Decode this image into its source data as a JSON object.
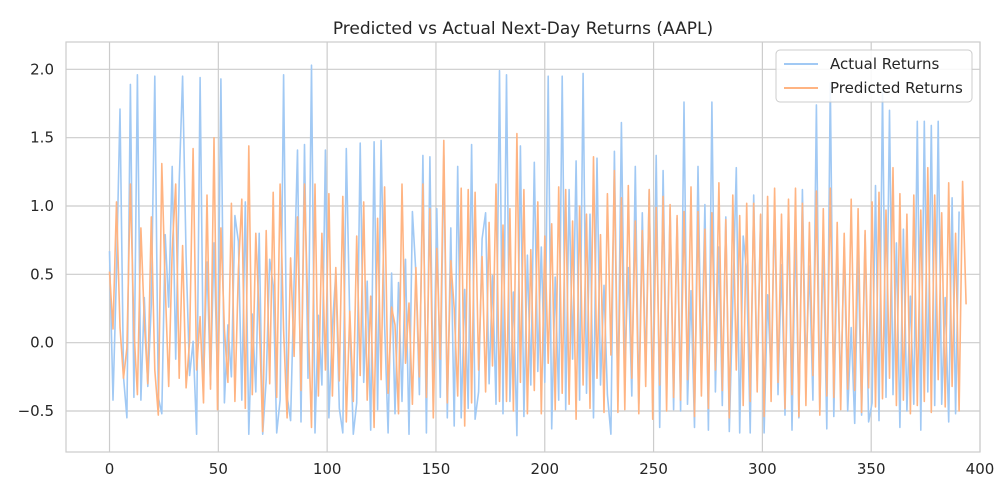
{
  "chart_data": {
    "type": "line",
    "title": "Predicted vs Actual Next-Day Returns (AAPL)",
    "xlabel": "",
    "ylabel": "",
    "xlim": [
      -20,
      400
    ],
    "ylim": [
      -0.8,
      2.2
    ],
    "x_ticks": [
      0,
      50,
      100,
      150,
      200,
      250,
      300,
      350,
      400
    ],
    "y_ticks": [
      -0.5,
      0.0,
      0.5,
      1.0,
      1.5,
      2.0
    ],
    "x_tick_labels": [
      "0",
      "50",
      "100",
      "150",
      "200",
      "250",
      "300",
      "350",
      "400"
    ],
    "y_tick_labels": [
      "−0.5",
      "0.0",
      "0.5",
      "1.0",
      "1.5",
      "2.0"
    ],
    "grid": true,
    "legend_position": "upper right",
    "series": [
      {
        "name": "Actual Returns",
        "color": "#a1c9f4",
        "values": [
          0.67,
          -0.42,
          0.52,
          1.71,
          -0.25,
          -0.55,
          1.89,
          -0.4,
          1.96,
          -0.42,
          0.33,
          -0.32,
          0.28,
          1.95,
          -0.4,
          -0.52,
          0.79,
          0.26,
          1.29,
          -0.12,
          1.18,
          1.95,
          0.63,
          -0.24,
          0.01,
          -0.67,
          1.94,
          -0.29,
          0.59,
          -0.31,
          0.73,
          -0.27,
          1.93,
          -0.44,
          0.13,
          -0.25,
          0.93,
          0.74,
          -0.42,
          1.03,
          -0.67,
          0.21,
          -0.36,
          0.8,
          -0.67,
          -0.27,
          0.61,
          0.42,
          -0.66,
          -0.42,
          1.96,
          -0.39,
          -0.57,
          0.45,
          1.41,
          -0.58,
          1.45,
          -0.26,
          2.03,
          -0.66,
          0.2,
          -0.31,
          1.41,
          -0.55,
          0.12,
          0.51,
          -0.48,
          -0.66,
          1.42,
          0.15,
          -0.67,
          -0.44,
          1.46,
          -0.29,
          0.45,
          -0.64,
          1.47,
          -0.49,
          1.48,
          0.13,
          -0.66,
          0.51,
          -0.52,
          0.44,
          -0.43,
          0.61,
          -0.67,
          0.96,
          0.51,
          -0.38,
          1.37,
          -0.66,
          1.36,
          -0.45,
          0.98,
          -0.4,
          1.37,
          -0.55,
          0.84,
          -0.61,
          1.29,
          -0.55,
          0.39,
          -0.48,
          1.45,
          -0.56,
          -0.36,
          0.76,
          0.95,
          -0.3,
          0.49,
          -0.45,
          1.99,
          -0.52,
          1.96,
          -0.43,
          0.37,
          -0.68,
          1.44,
          -0.54,
          0.64,
          -0.31,
          1.32,
          -0.21,
          0.7,
          -0.29,
          1.95,
          -0.63,
          0.48,
          -0.42,
          1.95,
          -0.49,
          1.12,
          -0.12,
          1.33,
          -0.42,
          1.97,
          -0.37,
          0.94,
          -0.55,
          1.35,
          -0.31,
          0.42,
          -0.38,
          -0.67,
          1.4,
          -0.43,
          1.61,
          -0.17,
          0.55,
          -0.39,
          1.29,
          -0.45,
          0.95,
          -0.21,
          1.12,
          -0.44,
          1.37,
          -0.62,
          1.26,
          -0.3,
          0.98,
          -0.49,
          0.91,
          -0.5,
          1.76,
          -0.45,
          0.38,
          -0.62,
          1.29,
          -0.23,
          1.01,
          -0.64,
          1.76,
          -0.36,
          0.7,
          -0.46,
          0.92,
          -0.65,
          0.3,
          1.28,
          -0.66,
          0.78,
          0.52,
          -0.66,
          1.08,
          -0.28,
          0.93,
          -0.66,
          0.35,
          -0.25,
          1.02,
          -0.38,
          0.57,
          -0.53,
          0.99,
          -0.64,
          0.84,
          -0.55,
          1.12,
          -0.22,
          0.56,
          -0.42,
          1.74,
          -0.48,
          0.72,
          -0.63,
          1.9,
          -0.54,
          0.69,
          -0.35,
          0.7,
          -0.5,
          0.11,
          -0.59,
          0.66,
          -0.53,
          0.79,
          -0.58,
          -0.44,
          1.15,
          -0.57,
          1.84,
          -0.4,
          1.7,
          -0.38,
          0.73,
          -0.62,
          0.83,
          -0.5,
          0.34,
          -0.45,
          1.62,
          -0.64,
          1.62,
          -0.36,
          1.59,
          -0.46,
          1.62,
          -0.45,
          0.33,
          -0.58,
          1.06,
          -0.52,
          0.96
        ],
        "x_start": 0,
        "x_step": 1.6
      },
      {
        "name": "Predicted Returns",
        "color": "#ffb482",
        "values": [
          0.52,
          0.1,
          1.03,
          0.11,
          -0.26,
          -0.04,
          1.16,
          0.1,
          -0.38,
          0.84,
          0.16,
          -0.3,
          0.92,
          -0.2,
          -0.53,
          1.31,
          0.42,
          -0.32,
          0.68,
          1.16,
          -0.26,
          0.71,
          -0.33,
          0.01,
          1.42,
          -0.2,
          0.19,
          -0.44,
          1.08,
          -0.34,
          1.5,
          -0.49,
          0.84,
          0.1,
          -0.29,
          1.02,
          -0.43,
          0.53,
          1.05,
          -0.48,
          1.44,
          -0.38,
          0.8,
          0.19,
          -0.65,
          0.82,
          -0.3,
          1.1,
          -0.4,
          1.16,
          0.09,
          -0.55,
          0.62,
          -0.1,
          0.92,
          -0.35,
          1.16,
          0.19,
          -0.62,
          1.16,
          -0.39,
          0.8,
          -0.2,
          1.09,
          -0.39,
          0.55,
          -0.28,
          1.07,
          -0.58,
          0.23,
          -0.43,
          0.78,
          -0.24,
          1.03,
          -0.42,
          0.34,
          -0.62,
          0.91,
          -0.27,
          1.14,
          -0.37,
          0.26,
          0.13,
          -0.52,
          1.16,
          -0.15,
          0.29,
          -0.45,
          0.55,
          -0.25,
          1.16,
          -0.4,
          0.98,
          -0.55,
          0.69,
          -0.12,
          1.48,
          -0.44,
          0.6,
          0.25,
          -0.39,
          1.13,
          -0.61,
          1.12,
          -0.44,
          1.1,
          -0.2,
          0.63,
          -0.36,
          0.88,
          -0.17,
          1.16,
          -0.43,
          0.86,
          -0.43,
          0.98,
          -0.5,
          1.53,
          -0.29,
          1.12,
          -0.52,
          0.68,
          -0.35,
          1.03,
          -0.52,
          0.78,
          -0.15,
          0.87,
          -0.49,
          1.14,
          -0.37,
          1.12,
          -0.45,
          0.89,
          -0.56,
          1.0,
          -0.31,
          0.94,
          -0.48,
          1.36,
          -0.26,
          0.79,
          -0.51,
          1.09,
          -0.09,
          1.26,
          -0.51,
          1.06,
          -0.49,
          1.15,
          -0.26,
          0.89,
          -0.52,
          0.82,
          -0.32,
          1.12,
          -0.56,
          0.99,
          -0.31,
          1.07,
          -0.5,
          1.01,
          -0.4,
          0.93,
          -0.42,
          0.96,
          -0.27,
          1.14,
          -0.54,
          0.96,
          -0.39,
          0.83,
          -0.48,
          0.95,
          -0.2,
          1.17,
          -0.35,
          0.9,
          -0.55,
          1.08,
          -0.2,
          0.93,
          -0.46,
          1.02,
          -0.43,
          1.02,
          -0.36,
          0.94,
          -0.54,
          1.07,
          -0.43,
          1.13,
          -0.29,
          0.94,
          -0.48,
          1.05,
          -0.38,
          1.13,
          -0.54,
          1.02,
          -0.46,
          0.88,
          -0.24,
          1.11,
          -0.53,
          0.98,
          -0.39,
          1.13,
          -0.4,
          0.88,
          -0.49,
          0.8,
          -0.34,
          1.05,
          -0.35,
          0.98,
          -0.51,
          0.82,
          -0.33,
          1.03,
          -0.47,
          1.1,
          -0.41,
          0.97,
          -0.26,
          1.28,
          -0.46,
          1.09,
          -0.42,
          0.94,
          -0.52,
          1.08,
          -0.46,
          0.97,
          -0.43,
          1.28,
          -0.51,
          1.08,
          -0.27,
          0.95,
          -0.47,
          1.17,
          -0.32,
          0.8,
          -0.5,
          1.18,
          0.28
        ],
        "x_start": 0,
        "x_step": 1.6
      }
    ]
  }
}
